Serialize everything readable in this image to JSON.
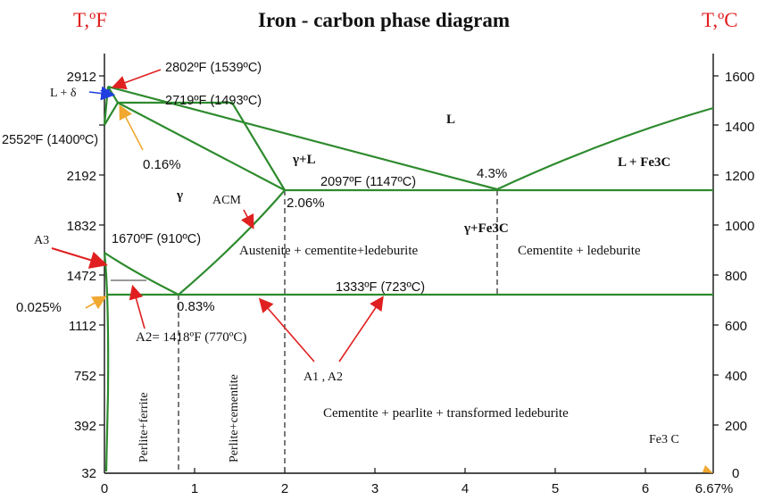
{
  "title": "Iron - carbon phase diagram",
  "left_unit": "T,ºF",
  "right_unit": "T,ºC",
  "left_ticks": [
    "2912",
    "2552",
    "2192",
    "1832",
    "1472",
    "1112",
    "752",
    "392",
    "32"
  ],
  "right_ticks": [
    "1600",
    "1400",
    "1200",
    "1000",
    "800",
    "600",
    "400",
    "200",
    "0"
  ],
  "x_ticks": [
    "0",
    "1",
    "2",
    "3",
    "4",
    "5",
    "6",
    "6.67%"
  ],
  "colors": {
    "title": "#111111",
    "unit": "#e02020",
    "line": "#2e8b2e",
    "arrow_red": "#e02020",
    "arrow_orange": "#f0a830",
    "arrow_blue": "#1f3fe0",
    "dash": "#333333"
  },
  "labels": {
    "pt_2802": "2802ºF (1539ºC)",
    "pt_2719": "2719ºF (1493ºC)",
    "pt_2552": "2552ºF (1400ºC)",
    "pct_016": "0.16%",
    "pt_2097": "2097ºF (1147ºC)",
    "pct_43": "4.3%",
    "pct_206": "2.06%",
    "pt_1670": "1670ºF (910ºC)",
    "pt_1333": "1333ºF (723ºC)",
    "pct_0025": "0.025%",
    "pct_083": "0.83%",
    "a2": "A2= 1418ºF (770ºC)",
    "l_delta": "L + δ",
    "a3": "A3",
    "acm": "ACM",
    "a1a2": "A1 , A2",
    "region_l": "L",
    "region_gamma_l": "γ+L",
    "region_l_fe3c": "L + Fe3C",
    "region_gamma": "γ",
    "region_gamma_fe3c": "γ+Fe3C",
    "region_aust": "Austenite + cementite+ledeburite",
    "region_cem_led": "Cementite + ledeburite",
    "region_cem_pearl": "Cementite +  pearlite + transformed  ledeburite",
    "region_perlite_ferrite": "Perlite+ferrite",
    "region_perlite_cem": "Perlite+cementite",
    "fe3c": "Fe3 C"
  }
}
